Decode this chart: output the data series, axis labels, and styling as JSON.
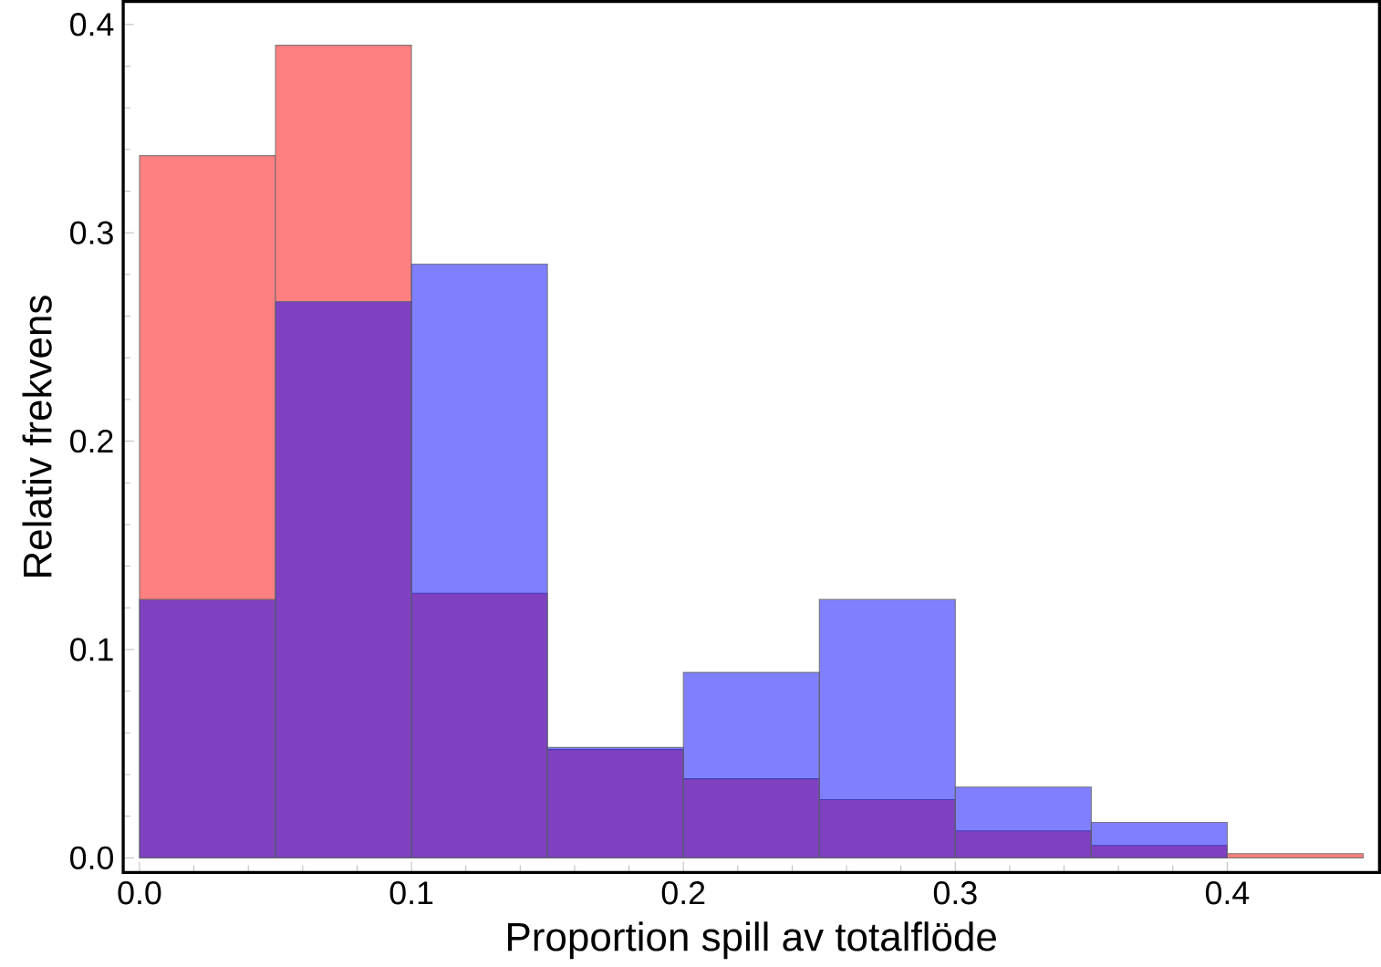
{
  "chart_data": {
    "type": "histogram",
    "xlabel": "Proportion spill av totalflöde",
    "ylabel": "Relativ frekvens",
    "bins": [
      0,
      0.05,
      0.1,
      0.15,
      0.2,
      0.25,
      0.3,
      0.35,
      0.4,
      0.45
    ],
    "series": [
      {
        "color": "#ff8080",
        "values": [
          0.337,
          0.39,
          0.127,
          0.052,
          0.038,
          0.028,
          0.013,
          0.006,
          0.002
        ]
      },
      {
        "color": "#8080ff",
        "values": [
          0.124,
          0.267,
          0.285,
          0.053,
          0.089,
          0.124,
          0.034,
          0.017,
          null
        ]
      }
    ],
    "xlim": [
      -0.006,
      0.456
    ],
    "ylim": [
      -0.007,
      0.411
    ],
    "xticks": [
      {
        "value": 0,
        "label": "0.0"
      },
      0.1,
      0.2,
      0.3,
      0.4
    ],
    "yticks": [
      {
        "value": 0,
        "label": "0.0"
      },
      0.1,
      0.2,
      0.3,
      0.4
    ],
    "grid": false
  }
}
